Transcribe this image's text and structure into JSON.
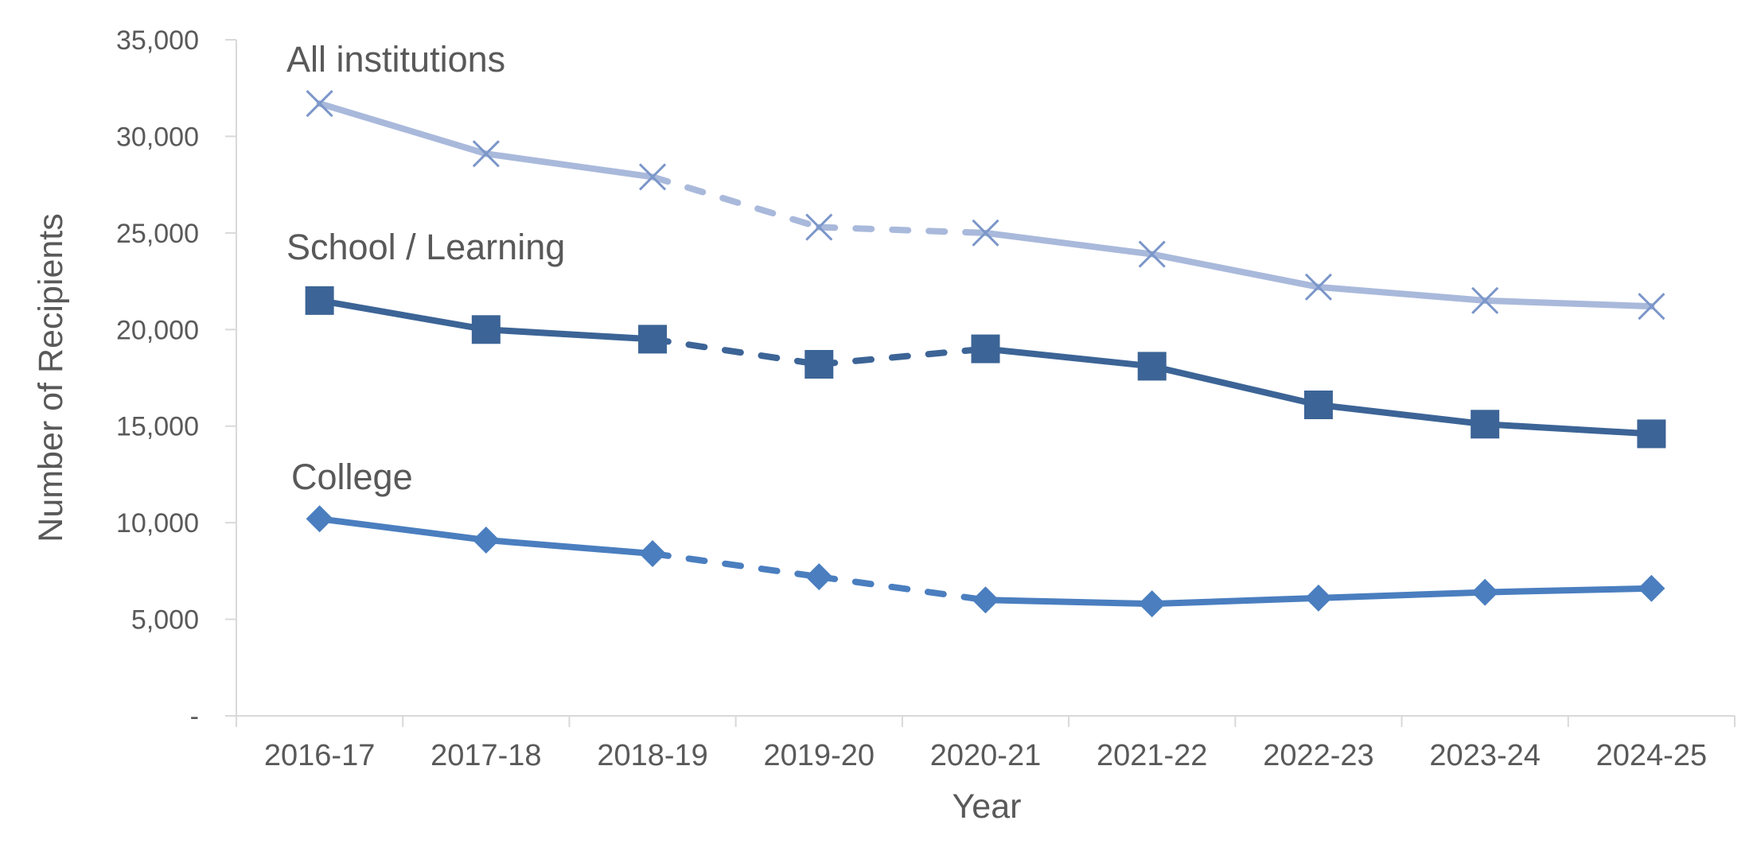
{
  "chart_data": {
    "type": "line",
    "title": "",
    "xlabel": "Year",
    "ylabel": "Number of Recipients",
    "categories": [
      "2016-17",
      "2017-18",
      "2018-19",
      "2019-20",
      "2020-21",
      "2021-22",
      "2022-23",
      "2023-24",
      "2024-25"
    ],
    "ylim": [
      0,
      35000
    ],
    "yticks": [
      0,
      5000,
      10000,
      15000,
      20000,
      25000,
      30000,
      35000
    ],
    "ytick_labels": [
      "-",
      "5,000",
      "10,000",
      "15,000",
      "20,000",
      "25,000",
      "30,000",
      "35,000"
    ],
    "grid": false,
    "legend": "none (series labelled directly on chart)",
    "dashed_segments": "2018-19 to 2020-21",
    "series": [
      {
        "name": "All institutions",
        "values": [
          31700,
          29100,
          27900,
          25300,
          25000,
          23900,
          22200,
          21500,
          21200
        ],
        "color": "#a9b9db",
        "marker": "x"
      },
      {
        "name": "School / Learning",
        "values": [
          21500,
          20000,
          19500,
          18200,
          19000,
          18100,
          16100,
          15100,
          14600
        ],
        "color": "#3c6496",
        "marker": "square"
      },
      {
        "name": "College",
        "values": [
          10200,
          9100,
          8400,
          7200,
          6000,
          5800,
          6100,
          6400,
          6600
        ],
        "color": "#4a7ebf",
        "marker": "diamond"
      }
    ]
  }
}
